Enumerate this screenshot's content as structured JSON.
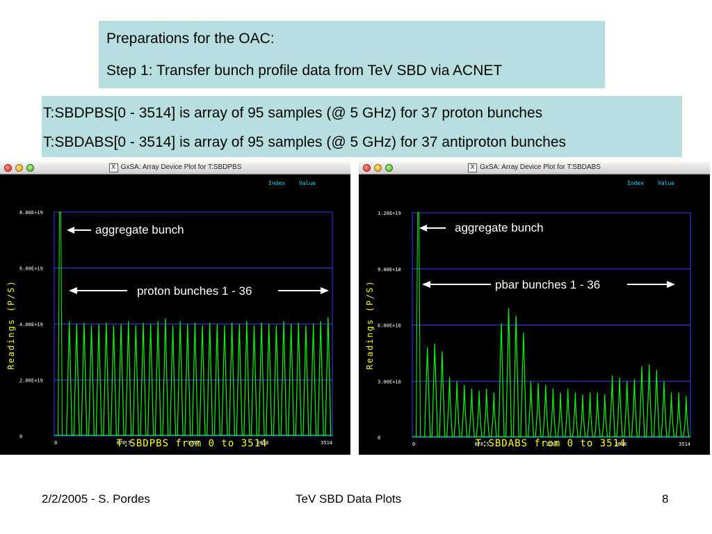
{
  "header": {
    "line1": "Preparations for the OAC:",
    "line2": "Step 1: Transfer bunch profile data from TeV SBD via ACNET"
  },
  "description": {
    "line1": "T:SBDPBS[0 - 3514] is array of 95 samples (@ 5 GHz) for 37 proton bunches",
    "line2": "T:SBDABS[0 - 3514] is array of 95 samples (@ 5 GHz) for 37 antiproton bunches"
  },
  "windows": [
    {
      "title": "GxSA: Array Device Plot for T:SBDPBS",
      "x_icon": "X",
      "controls": {
        "index_label": "Index",
        "value_label": "Value"
      }
    },
    {
      "title": "GxSA: Array Device Plot for T:SBDABS",
      "x_icon": "X",
      "controls": {
        "index_label": "Index",
        "value_label": "Value"
      }
    }
  ],
  "chart_data": [
    {
      "type": "line",
      "title": "T:SBDPBS from 0 to 3514",
      "ylabel": "Readings (P/S)",
      "xlim": [
        0,
        3514
      ],
      "ylim": [
        0,
        8e+19
      ],
      "x_ticks": [
        "0",
        "878.5",
        "1757",
        "2636",
        "3514"
      ],
      "y_ticks": [
        "0",
        "2.00E+19",
        "4.00E+19",
        "6.00E+19",
        "8.00E+19"
      ],
      "grid": true,
      "annotations": [
        {
          "text": "aggregate bunch"
        },
        {
          "text": "proton bunches 1 - 36"
        }
      ],
      "aggregate_peak": 8e+19,
      "bunch_peaks": [
        4.1e+19,
        4e+19,
        4.05e+19,
        3.95e+19,
        4e+19,
        4.05e+19,
        3.95e+19,
        4e+19,
        4.1e+19,
        3.95e+19,
        4.05e+19,
        4e+19,
        4.1e+19,
        4.2e+19,
        3.95e+19,
        4.1e+19,
        4e+19,
        4.05e+19,
        3.95e+19,
        4.05e+19,
        4e+19,
        3.95e+19,
        4.05e+19,
        4e+19,
        4.1e+19,
        3.95e+19,
        4.05e+19,
        4e+19,
        3.95e+19,
        4.1e+19,
        4e+19,
        4.05e+19,
        3.95e+19,
        4e+19,
        4.1e+19,
        4.25e+19
      ],
      "series_color": "#00ff00"
    },
    {
      "type": "line",
      "title": "T:SBDABS from 0 to 3514",
      "ylabel": "Readings (P/S)",
      "xlim": [
        0,
        3514
      ],
      "ylim": [
        0,
        1.2e+19
      ],
      "x_ticks": [
        "0",
        "878.5",
        "1757",
        "2636",
        "3514"
      ],
      "y_ticks": [
        "0",
        "3.00E+18",
        "6.00E+18",
        "9.00E+18",
        "1.20E+19"
      ],
      "grid": true,
      "annotations": [
        {
          "text": "aggregate bunch"
        },
        {
          "text": "pbar bunches 1 - 36"
        }
      ],
      "aggregate_peak": 1.2e+19,
      "bunch_peaks": [
        4.8e+18,
        5e+18,
        4.6e+18,
        3.2e+18,
        3e+18,
        2.8e+18,
        2.6e+18,
        2.5e+18,
        2.6e+18,
        2.4e+18,
        6.1e+18,
        6.9e+18,
        6.5e+18,
        5.6e+18,
        3e+18,
        2.9e+18,
        2.8e+18,
        2.6e+18,
        2.4e+18,
        2.6e+18,
        2.4e+18,
        2.3e+18,
        2.4e+18,
        2.4e+18,
        2.3e+18,
        3.3e+18,
        3.2e+18,
        3e+18,
        3.1e+18,
        3.8e+18,
        3.9e+18,
        3.6e+18,
        3e+18,
        2.4e+18,
        2.4e+18,
        2.2e+18
      ],
      "series_color": "#00ff00"
    }
  ],
  "footer": {
    "left": "2/2/2005 - S. Pordes",
    "center": "TeV SBD Data Plots",
    "page": "8"
  }
}
